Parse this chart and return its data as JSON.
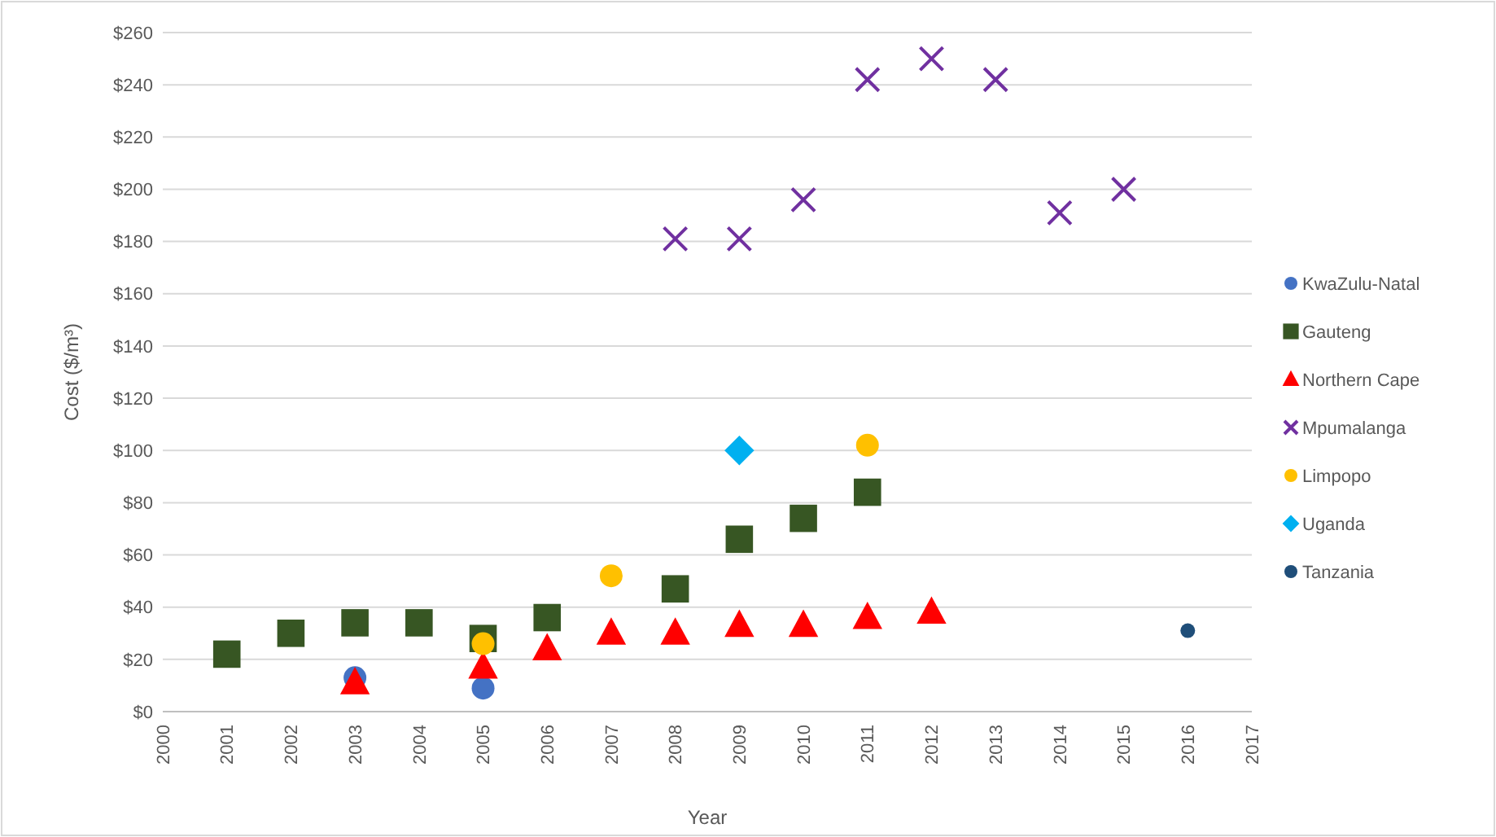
{
  "chart_data": {
    "type": "scatter",
    "xlabel": "Year",
    "ylabel": "Cost ($/m³)",
    "xlim": [
      2000,
      2017
    ],
    "xticks": [
      2000,
      2001,
      2002,
      2003,
      2004,
      2005,
      2006,
      2007,
      2008,
      2009,
      2010,
      2011,
      2012,
      2013,
      2014,
      2015,
      2016,
      2017
    ],
    "ylim": [
      0,
      260
    ],
    "yticks": [
      {
        "value": 0,
        "label": "$0"
      },
      {
        "value": 20,
        "label": "$20"
      },
      {
        "value": 40,
        "label": "$40"
      },
      {
        "value": 60,
        "label": "$60"
      },
      {
        "value": 80,
        "label": "$80"
      },
      {
        "value": 100,
        "label": "$100"
      },
      {
        "value": 120,
        "label": "$120"
      },
      {
        "value": 140,
        "label": "$140"
      },
      {
        "value": 160,
        "label": "$160"
      },
      {
        "value": 180,
        "label": "$180"
      },
      {
        "value": 200,
        "label": "$200"
      },
      {
        "value": 220,
        "label": "$220"
      },
      {
        "value": 240,
        "label": "$240"
      },
      {
        "value": 260,
        "label": "$260"
      }
    ],
    "grid": "y",
    "legend": "right",
    "series": [
      {
        "name": "KwaZulu-Natal",
        "color": "#4472c4",
        "marker": "circle",
        "x": [
          2003,
          2005
        ],
        "values": [
          13,
          9
        ]
      },
      {
        "name": "Gauteng",
        "color": "#375623",
        "marker": "square",
        "x": [
          2001,
          2002,
          2003,
          2004,
          2005,
          2006,
          2008,
          2009,
          2010,
          2011
        ],
        "values": [
          22,
          30,
          34,
          34,
          28,
          36,
          47,
          66,
          74,
          84
        ]
      },
      {
        "name": "Northern Cape",
        "color": "#ff0000",
        "marker": "triangle",
        "x": [
          2003,
          2005,
          2006,
          2007,
          2008,
          2009,
          2010,
          2011,
          2012
        ],
        "values": [
          11,
          17,
          24,
          30,
          30,
          33,
          33,
          36,
          38
        ]
      },
      {
        "name": "Mpumalanga",
        "color": "#7030a0",
        "marker": "cross",
        "x": [
          2008,
          2009,
          2010,
          2011,
          2012,
          2013,
          2014,
          2015
        ],
        "values": [
          181,
          181,
          196,
          242,
          250,
          242,
          191,
          200
        ]
      },
      {
        "name": "Limpopo",
        "color": "#ffc000",
        "marker": "circle",
        "x": [
          2005,
          2007,
          2011
        ],
        "values": [
          26,
          52,
          102
        ]
      },
      {
        "name": "Uganda",
        "color": "#00b0f0",
        "marker": "diamond",
        "x": [
          2009
        ],
        "values": [
          100
        ]
      },
      {
        "name": "Tanzania",
        "color": "#1f4e79",
        "marker": "circle",
        "x": [
          2016
        ],
        "values": [
          31
        ]
      }
    ]
  }
}
